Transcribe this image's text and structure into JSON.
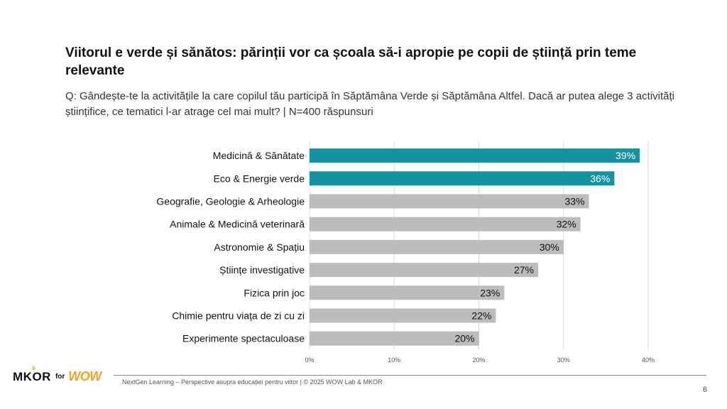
{
  "header": {
    "title": "Viitorul e verde și sănătos: părinții vor ca școala să-i apropie pe copii de știință prin teme relevante",
    "subtitle": "Q: Gândește-te la activitățile la care copilul tău participă în Săptămâna Verde și Săptămâna Altfel. Dacă ar putea alege 3 activități științifice, ce tematici l-ar atrage cel mai mult? | N=400 răspunsuri"
  },
  "chart_data": {
    "type": "bar",
    "orientation": "horizontal",
    "categories": [
      "Medicină & Sănătate",
      "Eco & Energie verde",
      "Geografie, Geologie & Arheologie",
      "Animale & Medicină veterinară",
      "Astronomie & Spațiu",
      "Științe investigative",
      "Fizica prin joc",
      "Chimie pentru viața de zi cu zi",
      "Experimente spectaculoase"
    ],
    "values": [
      39,
      36,
      33,
      32,
      30,
      27,
      23,
      22,
      20
    ],
    "data_labels": [
      "39%",
      "36%",
      "33%",
      "32%",
      "30%",
      "27%",
      "23%",
      "22%",
      "20%"
    ],
    "xlim": [
      0,
      40
    ],
    "x_ticks": [
      0,
      10,
      20,
      30,
      40
    ],
    "x_tick_labels": [
      "0%",
      "10%",
      "20%",
      "30%",
      "40%"
    ],
    "grid": true,
    "highlight_count": 2,
    "colors": {
      "highlight": "#14929f",
      "default": "#bcbcbc",
      "grid": "#d9d9d9"
    }
  },
  "footer": {
    "brand": "MKOR",
    "brand_for": "for",
    "brand_partner": "WOW",
    "text": "NextGen Learning – Perspective asupra educației pentru viitor | © 2025 WOW Lab & MKOR",
    "page_number": "6"
  }
}
